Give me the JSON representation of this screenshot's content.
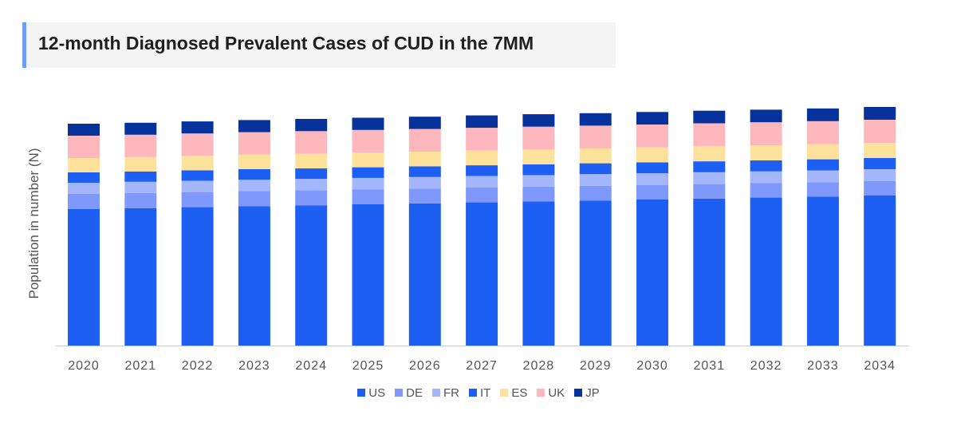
{
  "chart_data": {
    "type": "bar",
    "stacked": true,
    "title": "12-month Diagnosed Prevalent Cases of CUD  in the 7MM",
    "xlabel": "",
    "ylabel": "Population in number (N)",
    "note": "No y-axis tick labels shown; values are relative estimates",
    "categories": [
      "2020",
      "2021",
      "2022",
      "2023",
      "2024",
      "2025",
      "2026",
      "2027",
      "2028",
      "2029",
      "2030",
      "2031",
      "2032",
      "2033",
      "2034"
    ],
    "series": [
      {
        "name": "US",
        "color": "#1c5ff2",
        "values": [
          171,
          172.2,
          173.4,
          174.6,
          175.8,
          177,
          178.2,
          179.4,
          180.6,
          181.8,
          183,
          184.2,
          185.4,
          186.6,
          188
        ]
      },
      {
        "name": "DE",
        "color": "#7f98fb",
        "values": [
          19,
          19,
          19,
          19,
          18.8,
          18.8,
          18.6,
          18.6,
          18.5,
          18.4,
          18.3,
          18.2,
          18.1,
          18,
          18
        ]
      },
      {
        "name": "FR",
        "color": "#a4b6fc",
        "values": [
          14,
          14,
          14.1,
          14.2,
          14.3,
          14.3,
          14.4,
          14.5,
          14.5,
          14.6,
          14.7,
          14.8,
          14.8,
          14.9,
          15
        ]
      },
      {
        "name": "IT",
        "color": "#1c5ff2",
        "values": [
          13,
          13,
          13.1,
          13.2,
          13.2,
          13.3,
          13.4,
          13.4,
          13.5,
          13.6,
          13.6,
          13.7,
          13.8,
          13.9,
          14
        ]
      },
      {
        "name": "ES",
        "color": "#fee19b",
        "values": [
          18,
          18,
          18.1,
          18.2,
          18.3,
          18.4,
          18.4,
          18.5,
          18.6,
          18.6,
          18.7,
          18.8,
          18.8,
          18.9,
          19
        ]
      },
      {
        "name": "UK",
        "color": "#feb8bd",
        "values": [
          28,
          28,
          28.1,
          28.2,
          28.3,
          28.4,
          28.4,
          28.5,
          28.6,
          28.6,
          28.7,
          28.8,
          28.9,
          28.9,
          29
        ]
      },
      {
        "name": "JP",
        "color": "#07329c",
        "values": [
          15,
          15,
          15.1,
          15.2,
          15.3,
          15.3,
          15.4,
          15.5,
          15.6,
          15.6,
          15.7,
          15.8,
          15.8,
          15.9,
          16
        ]
      }
    ],
    "legend_position": "bottom",
    "grid": false
  }
}
